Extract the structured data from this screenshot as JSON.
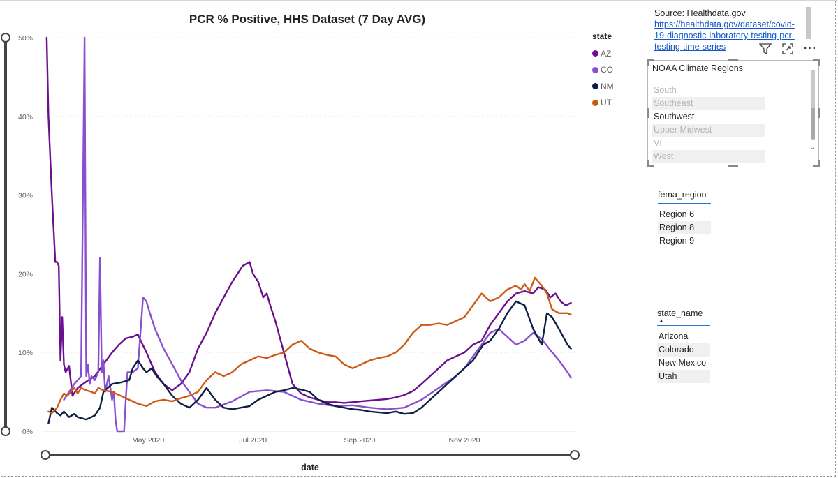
{
  "chart_data": {
    "type": "line",
    "title": "PCR % Positive, HHS Dataset (7 Day AVG)",
    "xlabel": "date",
    "ylabel": "",
    "ylim": [
      0,
      50
    ],
    "yticks": [
      "0%",
      "10%",
      "20%",
      "30%",
      "40%",
      "50%"
    ],
    "xticks": [
      "May 2020",
      "Jul 2020",
      "Sep 2020",
      "Nov 2020"
    ],
    "xticks_day": [
      61,
      122,
      184,
      245
    ],
    "x_domain_days": [
      0,
      310
    ],
    "x_unit": "days since 2020-03-01",
    "legend_title": "state",
    "series": [
      {
        "name": "AZ",
        "color": "#6a0f8e",
        "x": [
          2,
          3,
          5,
          7,
          8,
          9,
          10,
          11,
          12,
          13,
          15,
          17,
          20,
          25,
          30,
          35,
          40,
          44,
          48,
          52,
          55,
          60,
          65,
          70,
          75,
          80,
          85,
          90,
          95,
          100,
          105,
          110,
          113,
          116,
          120,
          122,
          125,
          128,
          130,
          132,
          135,
          140,
          145,
          150,
          155,
          160,
          165,
          170,
          175,
          180,
          185,
          190,
          195,
          200,
          205,
          210,
          215,
          220,
          225,
          230,
          235,
          240,
          245,
          250,
          255,
          260,
          265,
          270,
          275,
          280,
          285,
          288,
          292,
          295,
          298,
          301,
          304,
          307
        ],
        "y": [
          50,
          40,
          30,
          21.5,
          21.5,
          21,
          9,
          14.5,
          8.5,
          7.5,
          8.3,
          4.5,
          5.5,
          6.3,
          7,
          8.5,
          10,
          11,
          11.8,
          12,
          12.3,
          10,
          7.5,
          6,
          5.2,
          6,
          7.5,
          10.5,
          12.5,
          15,
          17,
          19,
          20,
          21,
          21.5,
          20,
          19,
          17,
          17.5,
          16,
          14,
          10,
          6,
          4.8,
          4.3,
          4,
          3.7,
          3.7,
          3.6,
          3.7,
          3.8,
          3.9,
          4,
          4.1,
          4.3,
          4.6,
          5.1,
          6,
          7,
          8,
          9,
          9.5,
          10,
          11,
          11.5,
          13.5,
          15,
          16.5,
          17.5,
          17.8,
          17.5,
          18.3,
          18,
          17,
          17.5,
          16.5,
          16,
          16.3
        ]
      },
      {
        "name": "CO",
        "color": "#8a4fcf",
        "x": [
          12,
          15,
          18,
          20,
          22,
          24,
          25,
          26,
          27,
          28,
          30,
          32,
          33,
          34,
          35,
          36,
          37,
          38,
          40,
          41,
          42,
          43,
          45,
          47,
          48,
          49,
          50,
          52,
          55,
          58,
          60,
          62,
          65,
          70,
          75,
          80,
          85,
          90,
          95,
          100,
          110,
          120,
          130,
          140,
          150,
          160,
          170,
          180,
          190,
          200,
          210,
          220,
          230,
          240,
          245,
          250,
          255,
          260,
          265,
          270,
          275,
          280,
          285,
          290,
          295,
          300,
          305,
          307
        ],
        "y": [
          4,
          5,
          6,
          6.5,
          7,
          50,
          7,
          8.5,
          6,
          7,
          6.5,
          7.5,
          22,
          7.5,
          9,
          5,
          6,
          7,
          4,
          5,
          1.5,
          0,
          0,
          0,
          4,
          7.5,
          7.5,
          7.5,
          8,
          17,
          16.5,
          15,
          13,
          10.5,
          8.5,
          6.5,
          5,
          3.5,
          3,
          3,
          3.8,
          5,
          5.2,
          5,
          4,
          3.5,
          3.2,
          3.3,
          3,
          2.8,
          3,
          4,
          5.5,
          7,
          8,
          9.5,
          11,
          12.5,
          13,
          12,
          11,
          11.5,
          12.5,
          11.7,
          10.3,
          9,
          7.5,
          6.8
        ]
      },
      {
        "name": "NM",
        "color": "#0d1f44",
        "x": [
          3,
          5,
          8,
          10,
          12,
          15,
          18,
          20,
          25,
          30,
          33,
          35,
          40,
          45,
          50,
          52,
          55,
          58,
          60,
          63,
          66,
          70,
          75,
          80,
          85,
          90,
          95,
          100,
          105,
          110,
          115,
          120,
          125,
          130,
          135,
          140,
          145,
          150,
          155,
          160,
          165,
          170,
          175,
          180,
          185,
          190,
          195,
          200,
          205,
          210,
          215,
          220,
          225,
          230,
          235,
          240,
          245,
          250,
          253,
          256,
          260,
          265,
          270,
          275,
          280,
          285,
          290,
          293,
          296,
          300,
          305,
          307
        ],
        "y": [
          1,
          3,
          2.3,
          2,
          2.5,
          1.8,
          2.2,
          1.8,
          1.5,
          2,
          3,
          5,
          6,
          6.2,
          6.5,
          8,
          9,
          8,
          7.5,
          8,
          7,
          6,
          4.5,
          3.5,
          3,
          4,
          5.5,
          4,
          3,
          2.8,
          3,
          3.2,
          4,
          4.5,
          5,
          5.2,
          5.5,
          5.3,
          5,
          4,
          3.5,
          3.2,
          3,
          2.8,
          2.7,
          2.5,
          2.4,
          2.3,
          2.5,
          2.2,
          2.3,
          3,
          4,
          5,
          6,
          7,
          8,
          9,
          10,
          11,
          11.5,
          13,
          15,
          16.5,
          16,
          13,
          11,
          15,
          14.5,
          13,
          11,
          10.5
        ]
      },
      {
        "name": "UT",
        "color": "#cc5a14",
        "x": [
          3,
          5,
          8,
          10,
          12,
          14,
          16,
          18,
          20,
          22,
          25,
          28,
          30,
          32,
          35,
          40,
          45,
          50,
          55,
          60,
          65,
          70,
          75,
          80,
          85,
          90,
          95,
          100,
          105,
          110,
          115,
          120,
          125,
          130,
          135,
          140,
          145,
          150,
          155,
          160,
          165,
          170,
          175,
          180,
          185,
          190,
          195,
          200,
          205,
          210,
          215,
          220,
          225,
          230,
          235,
          240,
          245,
          250,
          255,
          260,
          265,
          270,
          275,
          278,
          280,
          283,
          286,
          290,
          293,
          296,
          300,
          305,
          307
        ],
        "y": [
          2.5,
          2.3,
          3,
          4,
          4.8,
          4.5,
          5,
          5.5,
          4.8,
          5.5,
          5.2,
          5,
          4.8,
          5.5,
          5.2,
          5,
          4.5,
          4,
          3.5,
          3.2,
          3.8,
          4,
          3.8,
          4.2,
          4.5,
          5,
          6.5,
          7.5,
          7,
          7.5,
          8.5,
          9,
          9.5,
          9.3,
          9.7,
          10,
          11,
          11.5,
          10.5,
          10,
          9.7,
          9.5,
          8.5,
          8,
          8.5,
          9,
          9.3,
          9.5,
          10,
          11,
          12.5,
          13.5,
          13.5,
          13.7,
          13.5,
          14,
          14.5,
          16,
          17.5,
          16.5,
          17,
          18,
          18.5,
          18,
          18.7,
          17.8,
          19.5,
          18.5,
          17.5,
          15.5,
          15,
          15,
          14.8
        ]
      }
    ]
  },
  "source": {
    "label": "Source: Healthdata.gov",
    "link_lines": [
      "https://healthdata.gov/dataset/covid-",
      "19-diagnostic-laboratory-testing-pcr-",
      "testing-time-series"
    ]
  },
  "noaa_slicer": {
    "title": "NOAA Climate Regions",
    "items": [
      "South",
      "Southeast",
      "Southwest",
      "Upper Midwest",
      "VI",
      "West"
    ]
  },
  "fema_slicer": {
    "title": "fema_region",
    "items": [
      "Region 6",
      "Region 8",
      "Region 9"
    ]
  },
  "state_slicer": {
    "title": "state_name",
    "items": [
      "Arizona",
      "Colorado",
      "New Mexico",
      "Utah"
    ]
  },
  "toolbar": {
    "filter_icon": "filter-icon",
    "focus_icon": "focus-mode-icon",
    "more_label": "···"
  }
}
